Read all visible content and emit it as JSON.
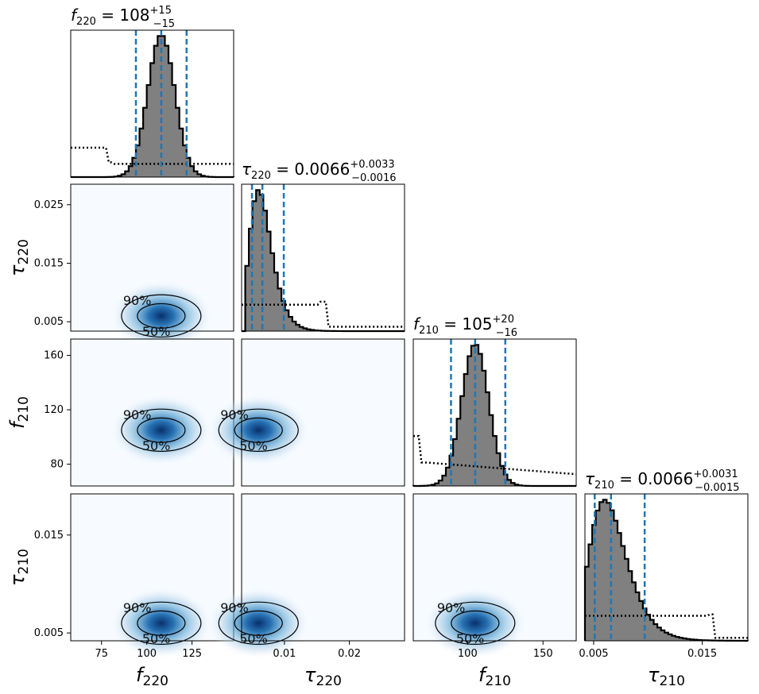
{
  "figure": {
    "type": "corner",
    "parameters": [
      "f_220",
      "tau_220",
      "f_210",
      "tau_210"
    ]
  },
  "chart_data": {
    "type": "corner",
    "parameters": [
      {
        "id": "f220",
        "label_main": "f",
        "label_sub": "220",
        "median": 108,
        "plus": "+15",
        "minus": "−15",
        "title_value": "108",
        "range": [
          58,
          148
        ],
        "ticks": [
          75,
          100,
          125
        ],
        "quantiles": [
          94,
          108,
          122
        ]
      },
      {
        "id": "tau220",
        "label_main": "τ",
        "label_sub": "220",
        "median": 0.0066,
        "plus": "+0.0033",
        "minus": "−0.0016",
        "title_value": "0.0066",
        "range": [
          0.0034,
          0.0285
        ],
        "ticks": [
          0.005,
          0.015,
          0.025
        ],
        "ticks_x": [
          0.01,
          0.02
        ],
        "quantiles": [
          0.005,
          0.0066,
          0.0099
        ]
      },
      {
        "id": "f210",
        "label_main": "f",
        "label_sub": "210",
        "median": 105,
        "plus": "+20",
        "minus": "−16",
        "title_value": "105",
        "range": [
          64,
          172
        ],
        "ticks": [
          80,
          120,
          160
        ],
        "ticks_x": [
          100,
          150
        ],
        "quantiles": [
          89,
          105,
          125
        ]
      },
      {
        "id": "tau210",
        "label_main": "τ",
        "label_sub": "210",
        "median": 0.0066,
        "plus": "+0.0031",
        "minus": "−0.0015",
        "title_value": "0.0066",
        "range": [
          0.0042,
          0.0192
        ],
        "ticks": [
          0.005,
          0.015
        ],
        "ticks_x": [
          0.005,
          0.015
        ],
        "quantiles": [
          0.0051,
          0.0066,
          0.0097
        ]
      }
    ],
    "posterior_histograms": [
      {
        "param": "f220",
        "mean": 108,
        "sd": 7.5
      },
      {
        "param": "tau220",
        "mode": 0.006,
        "skewed": true
      },
      {
        "param": "f210",
        "mean": 105,
        "sd": 9
      },
      {
        "param": "tau210",
        "mode": 0.006,
        "skewed": true
      }
    ],
    "prior_histograms_dotted": true,
    "contour_levels": [
      "50%",
      "90%"
    ],
    "colormap": "Blues",
    "quantile_line_color": "#1f77b4",
    "histogram_fill": "#808080"
  }
}
